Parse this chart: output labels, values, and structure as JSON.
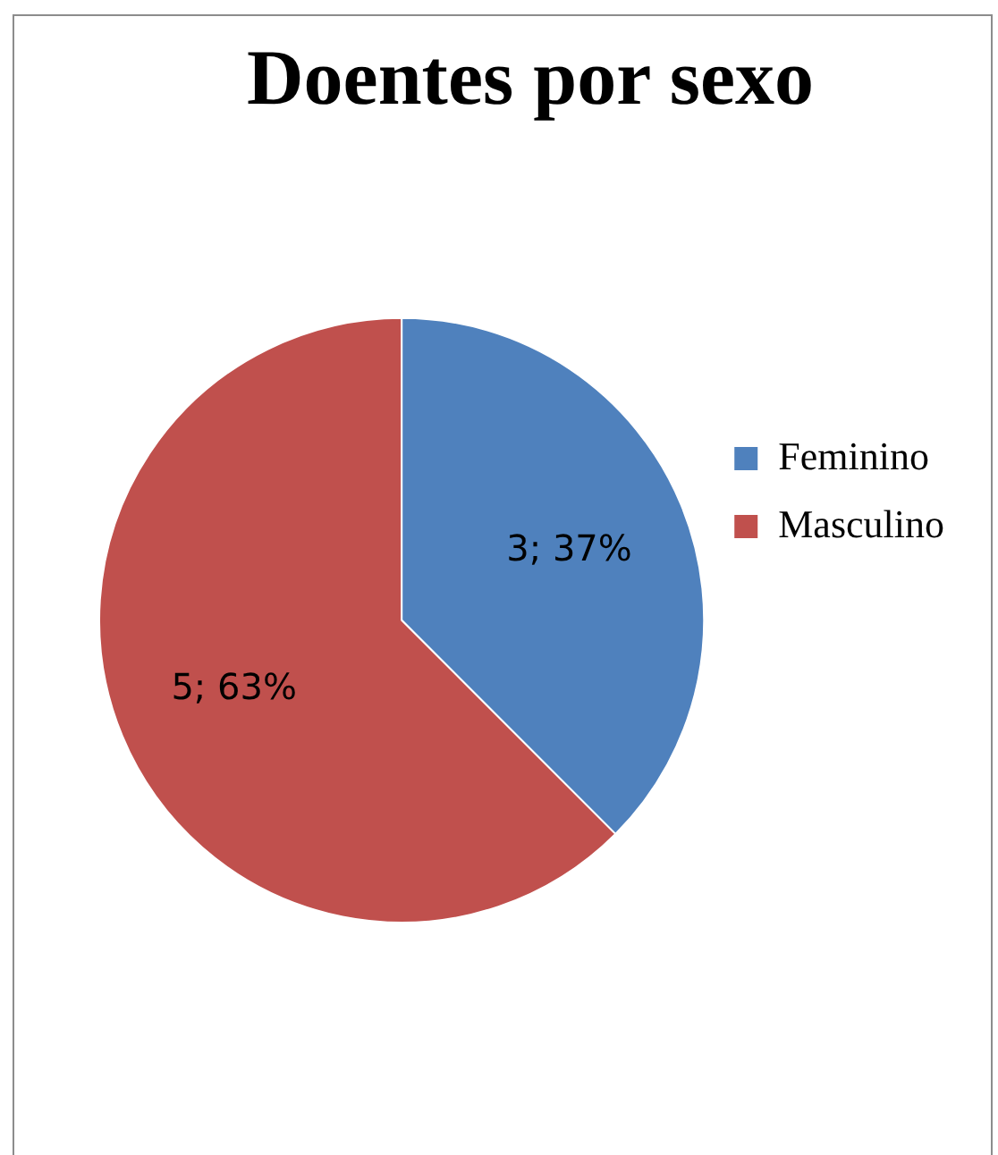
{
  "chart_data": {
    "type": "pie",
    "title": "Doentes por sexo",
    "categories": [
      "Feminino",
      "Masculino"
    ],
    "values": [
      3,
      5
    ],
    "colors": [
      "#4f81bd",
      "#c0504d"
    ],
    "value_labels": [
      "3; 37%",
      "5; 63%"
    ],
    "legend": "right"
  }
}
